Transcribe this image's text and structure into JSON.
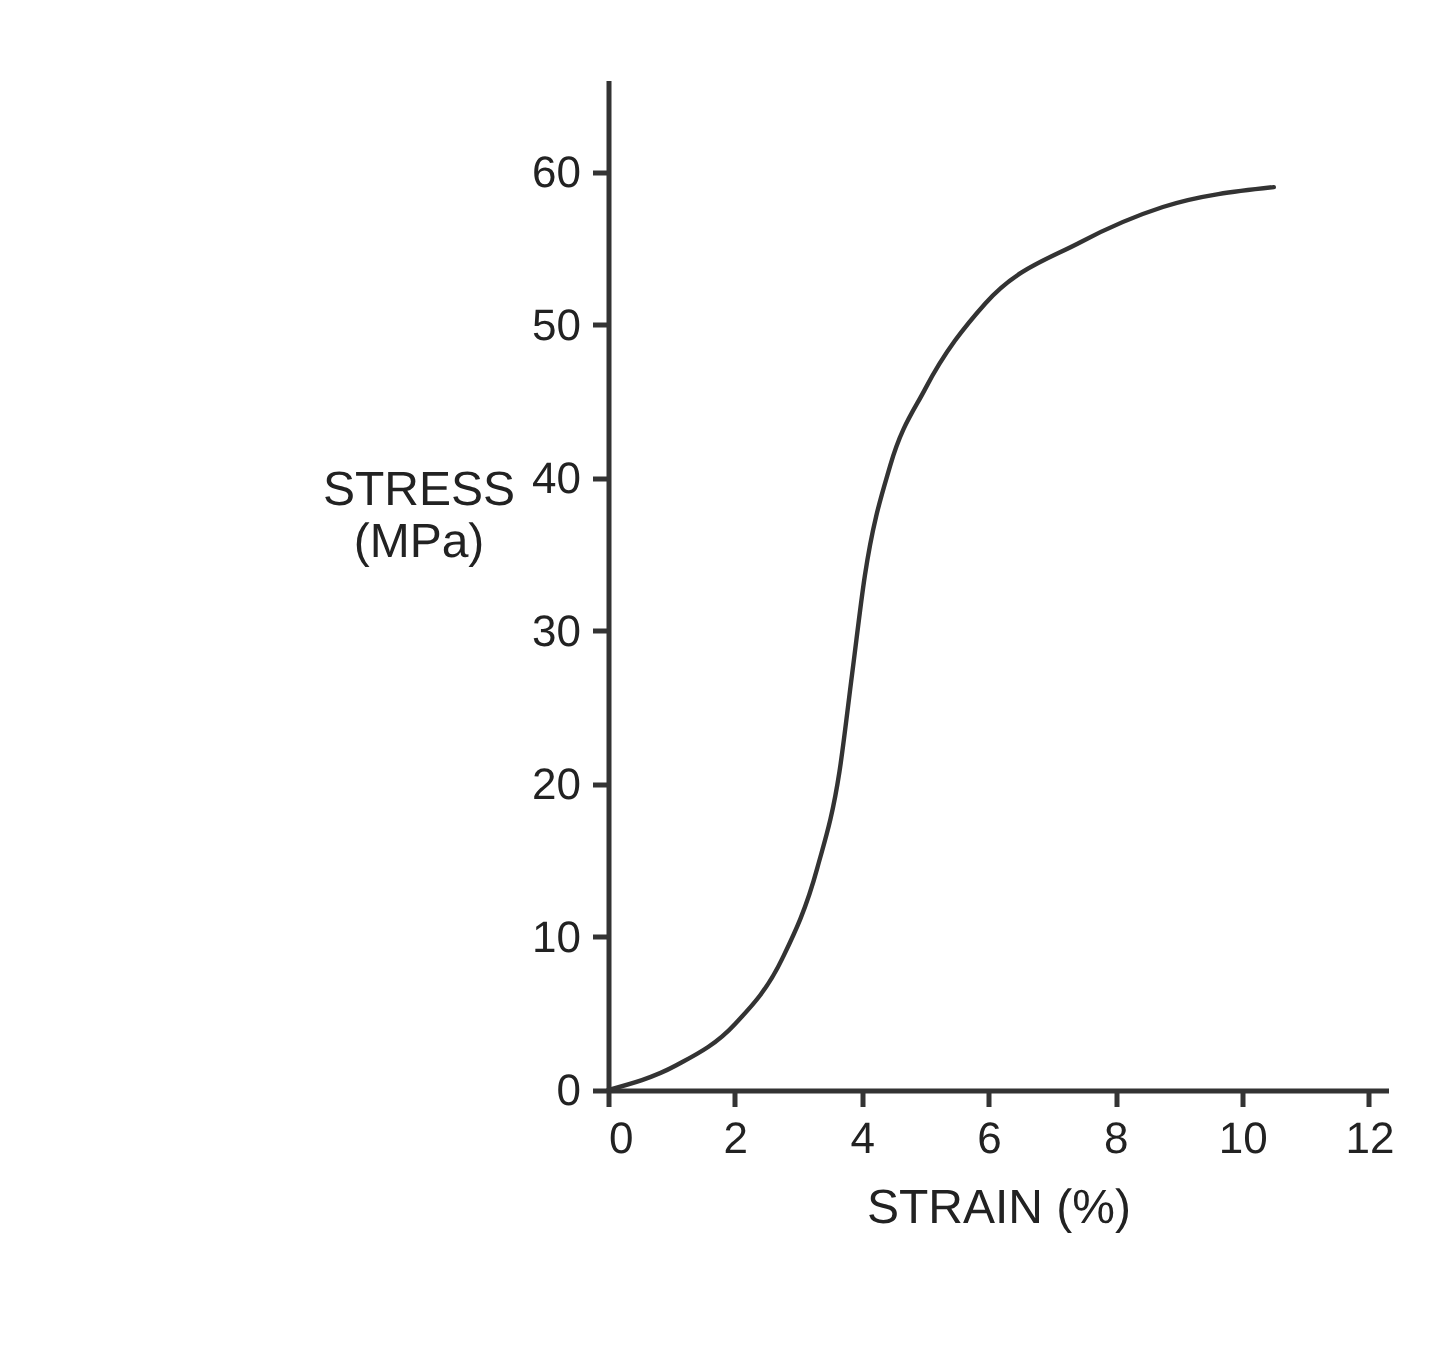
{
  "chart_data": {
    "type": "line",
    "xlabel": "STRAIN (%)",
    "ylabel": "STRESS (MPa)",
    "x": [
      0,
      1.07,
      2.0,
      2.75,
      3.3,
      3.65,
      3.85,
      4.05,
      4.45,
      5.0,
      5.95,
      7.45,
      8.75,
      10.5
    ],
    "series": [
      {
        "color": "#333333",
        "values": [
          0,
          1.6,
          4.3,
          8.6,
          14.5,
          20.8,
          27.2,
          33.6,
          40.8,
          45.8,
          51.4,
          55.4,
          57.7,
          59.0
        ]
      }
    ],
    "xlim": [
      0,
      12.3
    ],
    "xticks": [
      0,
      2,
      4,
      6,
      8,
      10,
      12
    ],
    "ylim": [
      0,
      66
    ],
    "yticks": [
      0,
      10,
      20,
      30,
      40,
      50,
      60
    ],
    "marker": "none",
    "line_style": "solid"
  }
}
